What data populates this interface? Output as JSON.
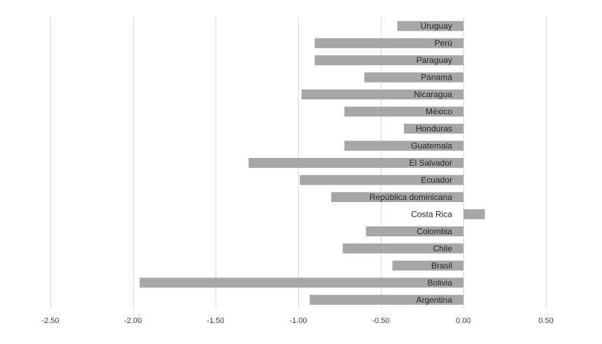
{
  "chart_data": {
    "type": "bar",
    "orientation": "horizontal",
    "title": "",
    "xlabel": "",
    "ylabel": "",
    "categories": [
      "Uruguay",
      "Perú",
      "Paraguay",
      "Panamá",
      "Nicaragua",
      "México",
      "Honduras",
      "Guatemala",
      "El Salvador",
      "Ecuador",
      "República dominicana",
      "Costa Rica",
      "Colombia",
      "Chile",
      "Brasil",
      "Bolivia",
      "Argentina"
    ],
    "values": [
      -0.4,
      -0.9,
      -0.9,
      -0.6,
      -0.98,
      -0.72,
      -0.36,
      -0.72,
      -1.3,
      -0.99,
      -0.8,
      0.13,
      -0.59,
      -0.73,
      -0.43,
      -1.96,
      -0.93
    ],
    "xlim": [
      -2.5,
      0.5
    ],
    "xticks": [
      -2.5,
      -2.0,
      -1.5,
      -1.0,
      -0.5,
      0.0,
      0.5
    ],
    "xtick_labels": [
      "-2.50",
      "-2.00",
      "-1.50",
      "-1.00",
      "-0.50",
      "0.00",
      "0.50"
    ],
    "grid": true,
    "legend": "none",
    "bar_color": "#a6a6a6"
  }
}
